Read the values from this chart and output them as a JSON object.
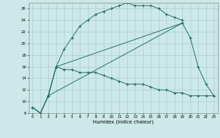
{
  "xlabel": "Humidex (Indice chaleur)",
  "bg_color": "#cce8e8",
  "grid_color": "#aacccc",
  "line_color": "#1a6b5a",
  "xlim": [
    -0.5,
    23.5
  ],
  "ylim": [
    8,
    27
  ],
  "xticks": [
    0,
    1,
    2,
    3,
    4,
    5,
    6,
    7,
    8,
    9,
    10,
    11,
    12,
    13,
    14,
    15,
    16,
    17,
    18,
    19,
    20,
    21,
    22,
    23
  ],
  "yticks": [
    8,
    10,
    12,
    14,
    16,
    18,
    20,
    22,
    24,
    26
  ],
  "line1_x": [
    0,
    1,
    2,
    3,
    4,
    5,
    6,
    7,
    8,
    9,
    10,
    11,
    12,
    13,
    14,
    15,
    16,
    17,
    18,
    19
  ],
  "line1_y": [
    9,
    8,
    11,
    16,
    19,
    21,
    23,
    24,
    25,
    25.5,
    26,
    26.5,
    27,
    26.5,
    26.5,
    26.5,
    26,
    25,
    24.5,
    24
  ],
  "line2_x": [
    0,
    1,
    2,
    3,
    4,
    5,
    6,
    7,
    8,
    9,
    10,
    11,
    12,
    13,
    14,
    15,
    16,
    17,
    18,
    19,
    20,
    21,
    22,
    23
  ],
  "line2_y": [
    9,
    8,
    11,
    16,
    15.5,
    15.5,
    15,
    15,
    15,
    14.5,
    14,
    13.5,
    13,
    13,
    13,
    12.5,
    12,
    12,
    11.5,
    11.5,
    11,
    11,
    11,
    11
  ],
  "line3_x": [
    2,
    3,
    19,
    20,
    21,
    22,
    23
  ],
  "line3_y": [
    11,
    16,
    23.5,
    21,
    16,
    13,
    11
  ],
  "line4_x": [
    0,
    1,
    2,
    19
  ],
  "line4_y": [
    9,
    8,
    11,
    23.5
  ]
}
